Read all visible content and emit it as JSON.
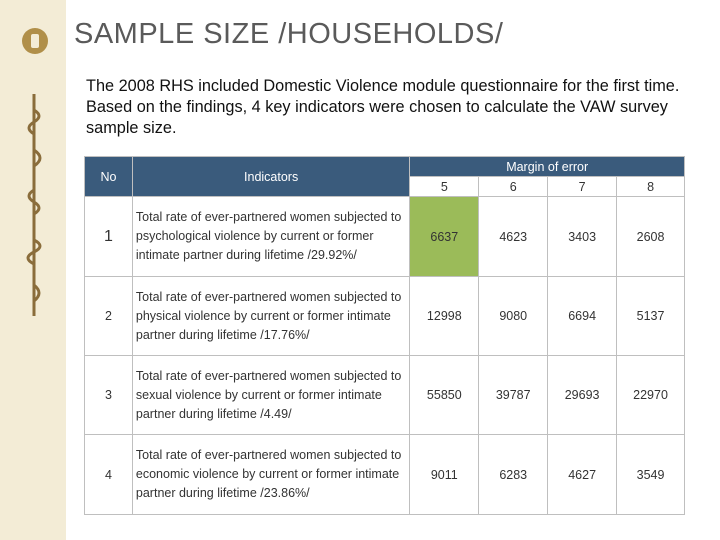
{
  "slide": {
    "title": "SAMPLE SIZE /HOUSEHOLDS/",
    "intro": "The 2008 RHS included Domestic Violence module questionnaire for the first time. Based on the findings, 4 key indicators were chosen to calculate the VAW survey sample size."
  },
  "table": {
    "col_no": "No",
    "col_indicators": "Indicators",
    "col_margin": "Margin of error",
    "margins": [
      "5",
      "6",
      "7",
      "8"
    ],
    "rows": [
      {
        "no": "1",
        "indicator": "Total rate of ever-partnered women subjected to psychological violence by current or former intimate partner during lifetime /29.92%/",
        "values": [
          "6637",
          "4623",
          "3403",
          "2608"
        ]
      },
      {
        "no": "2",
        "indicator": "Total rate of ever-partnered women subjected to physical violence by current or former intimate partner during lifetime /17.76%/",
        "values": [
          "12998",
          "9080",
          "6694",
          "5137"
        ]
      },
      {
        "no": "3",
        "indicator": "Total rate of ever-partnered women subjected to sexual violence by current or former intimate partner during lifetime /4.49/",
        "values": [
          "55850",
          "39787",
          "29693",
          "22970"
        ]
      },
      {
        "no": "4",
        "indicator": "Total rate of ever-partnered women subjected to economic violence by current or former intimate partner during lifetime /23.86%/",
        "values": [
          "9011",
          "6283",
          "4627",
          "3549"
        ]
      }
    ]
  },
  "colors": {
    "header": "#3a5b7c",
    "highlight": "#9bbb59",
    "sidebar": "#f3ecd6"
  }
}
